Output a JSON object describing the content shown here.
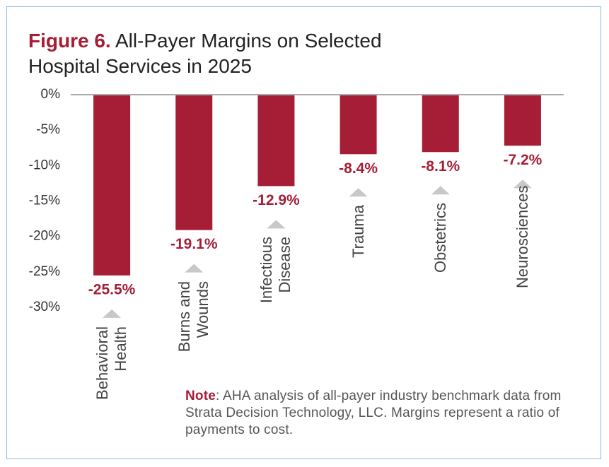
{
  "chart_data": {
    "type": "bar",
    "title_prefix": "Figure 6.",
    "title": "All-Payer Margins on Selected Hospital Services in 2025",
    "categories": [
      "Behavioral Health",
      "Burns and Wounds",
      "Infectious Disease",
      "Trauma",
      "Obstetrics",
      "Neurosciences"
    ],
    "values": [
      -25.5,
      -19.1,
      -12.9,
      -8.4,
      -8.1,
      -7.2
    ],
    "value_labels": [
      "-25.5%",
      "-19.1%",
      "-12.9%",
      "-8.4%",
      "-8.1%",
      "-7.2%"
    ],
    "color": "#a51e36",
    "ylim": [
      -30,
      0
    ],
    "yticks": [
      {
        "value": 0,
        "label": "0%"
      },
      {
        "value": -5,
        "label": "-5%"
      },
      {
        "value": -10,
        "label": "-10%"
      },
      {
        "value": -15,
        "label": "-15%"
      },
      {
        "value": -20,
        "label": "-20%"
      },
      {
        "value": -25,
        "label": "-25%"
      },
      {
        "value": -30,
        "label": "-30%"
      }
    ],
    "note_label": "Note",
    "note": ": AHA analysis of all-payer industry benchmark data from Strata Decision Technology, LLC. Margins represent a ratio of payments to cost."
  }
}
